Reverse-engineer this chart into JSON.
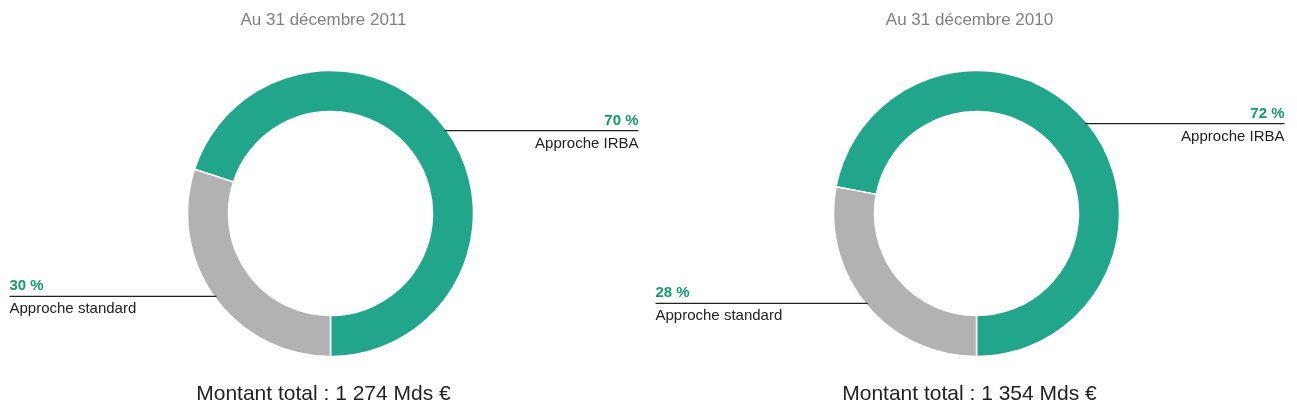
{
  "chart_data": [
    {
      "type": "donut",
      "title": "Au 31 décembre 2011",
      "categories": [
        "Approche IRBA",
        "Approche standard"
      ],
      "values": [
        70,
        30
      ],
      "colors": [
        "#21a68b",
        "#b2b2b2"
      ],
      "value_labels": [
        "70 %",
        "30 %"
      ],
      "annotations": [
        "Montant total : 1 274 Mds €"
      ]
    },
    {
      "type": "donut",
      "title": "Au 31 décembre 2010",
      "categories": [
        "Approche IRBA",
        "Approche standard"
      ],
      "values": [
        72,
        28
      ],
      "colors": [
        "#21a68b",
        "#b2b2b2"
      ],
      "value_labels": [
        "72 %",
        "28 %"
      ],
      "annotations": [
        "Montant total : 1 354 Mds €"
      ]
    }
  ]
}
